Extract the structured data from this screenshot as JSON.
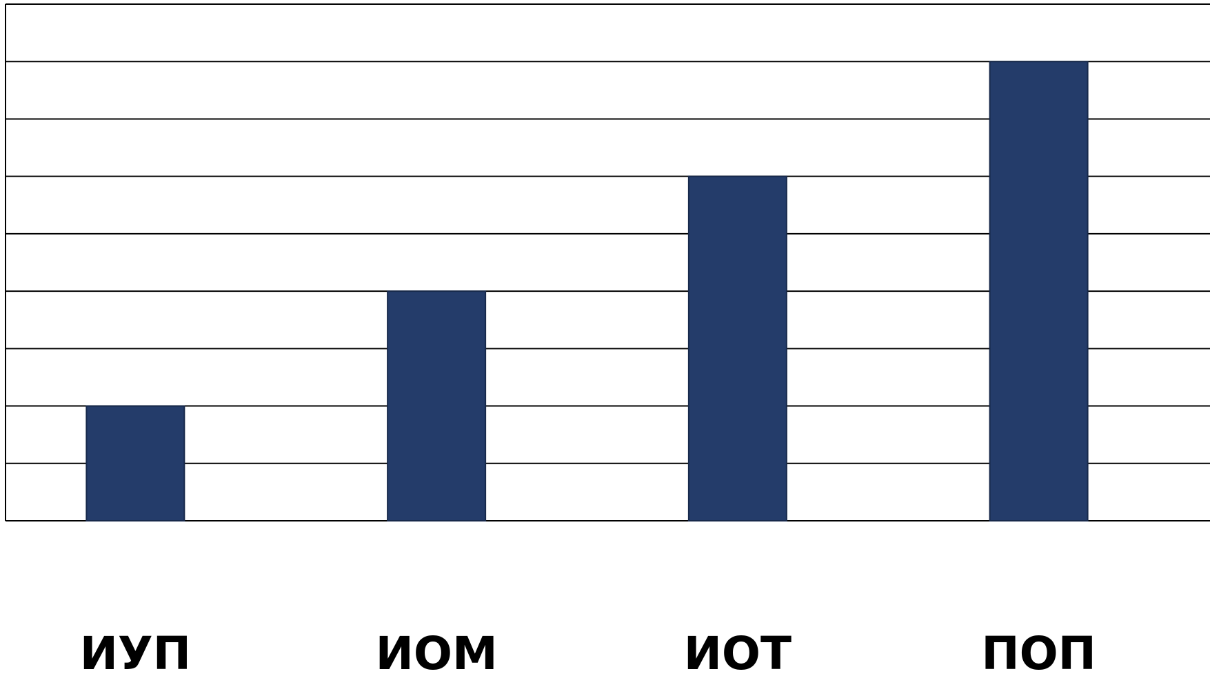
{
  "colors": {
    "bar": "#243c6a",
    "bar_edge": "#17294b",
    "grid": "#000000",
    "background": "#ffffff"
  },
  "chart_data": {
    "type": "bar",
    "categories": [
      "ИУП",
      "ИОМ",
      "ИОТ",
      "ПОП"
    ],
    "values": [
      2,
      4,
      6,
      8
    ],
    "title": "",
    "xlabel": "",
    "ylabel": "",
    "ylim": [
      0,
      9
    ],
    "grid": true,
    "y_tick_labels_shown": false,
    "legend": false
  }
}
